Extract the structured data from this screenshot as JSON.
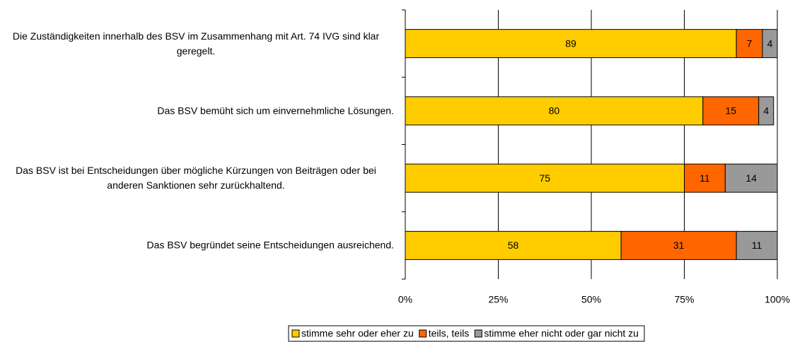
{
  "chart_data": {
    "type": "stacked_barh",
    "categories": [
      "Die Zuständigkeiten innerhalb des BSV im Zusammenhang mit Art. 74 IVG sind klar geregelt.",
      "Das BSV bemüht sich um einvernehmliche Lösungen.",
      "Das BSV ist bei Entscheidungen über mögliche Kürzungen von Beiträgen oder bei anderen Sanktionen sehr zurückhaltend.",
      "Das BSV begründet seine Entscheidungen ausreichend."
    ],
    "series": [
      {
        "name": "stimme sehr oder eher zu",
        "color": "#ffcc00",
        "values": [
          89,
          80,
          75,
          58
        ]
      },
      {
        "name": "teils, teils",
        "color": "#ff6600",
        "values": [
          7,
          15,
          11,
          31
        ]
      },
      {
        "name": "stimme eher nicht oder gar nicht zu",
        "color": "#999999",
        "values": [
          4,
          4,
          14,
          11
        ]
      }
    ],
    "xlim": [
      0,
      100
    ],
    "xticks": [
      {
        "value": 0,
        "label": "0%"
      },
      {
        "value": 25,
        "label": "25%"
      },
      {
        "value": 50,
        "label": "50%"
      },
      {
        "value": 75,
        "label": "75%"
      },
      {
        "value": 100,
        "label": "100%"
      }
    ],
    "grid": true,
    "legend": "bottom"
  }
}
